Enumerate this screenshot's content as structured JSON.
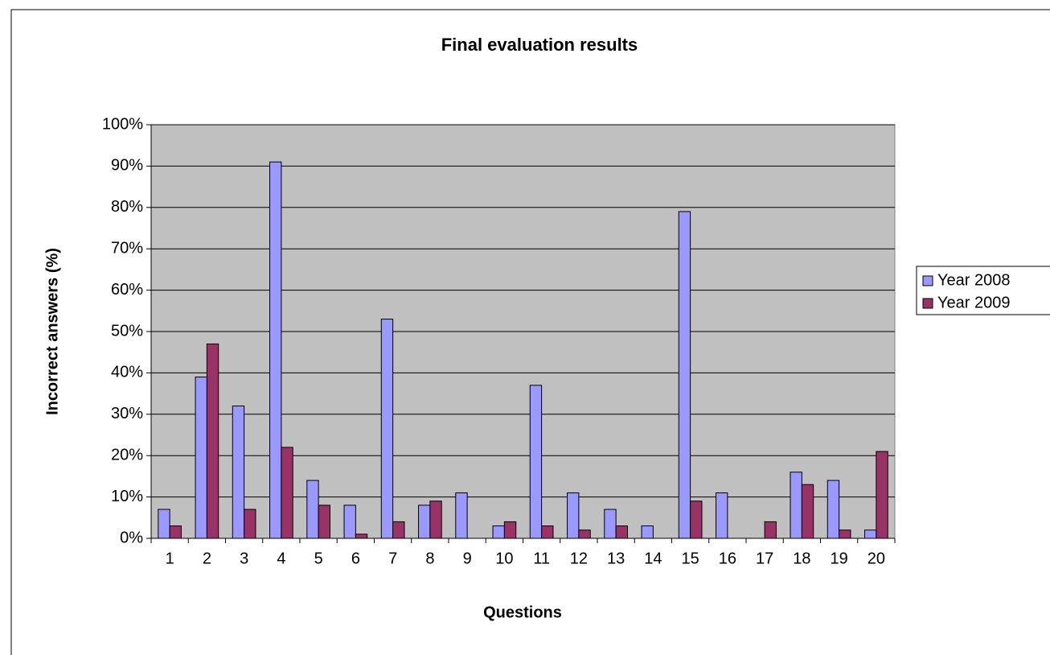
{
  "chart_data": {
    "type": "bar",
    "title": "Final evaluation results",
    "x_label": "Questions",
    "y_label": "Incorrect answers (%)",
    "categories": [
      "1",
      "2",
      "3",
      "4",
      "5",
      "6",
      "7",
      "8",
      "9",
      "10",
      "11",
      "12",
      "13",
      "14",
      "15",
      "16",
      "17",
      "18",
      "19",
      "20"
    ],
    "series": [
      {
        "name": "Year 2008",
        "color": "#9999ff",
        "values": [
          7,
          39,
          32,
          91,
          14,
          8,
          53,
          8,
          11,
          3,
          37,
          11,
          7,
          3,
          79,
          11,
          0,
          16,
          14,
          2
        ]
      },
      {
        "name": "Year 2009",
        "color": "#993366",
        "values": [
          3,
          47,
          7,
          22,
          8,
          1,
          4,
          9,
          0,
          4,
          3,
          2,
          3,
          0,
          9,
          0,
          4,
          13,
          2,
          21
        ]
      }
    ],
    "ylim": [
      0,
      100
    ],
    "yticks": [
      {
        "value": 0,
        "label": "0%"
      },
      {
        "value": 10,
        "label": "10%"
      },
      {
        "value": 20,
        "label": "20%"
      },
      {
        "value": 30,
        "label": "30%"
      },
      {
        "value": 40,
        "label": "40%"
      },
      {
        "value": 50,
        "label": "50%"
      },
      {
        "value": 60,
        "label": "60%"
      },
      {
        "value": 70,
        "label": "70%"
      },
      {
        "value": 80,
        "label": "80%"
      },
      {
        "value": 90,
        "label": "90%"
      },
      {
        "value": 100,
        "label": "100%"
      }
    ],
    "grid": true,
    "legend": "right",
    "plot_background": "#c0c0c0"
  }
}
